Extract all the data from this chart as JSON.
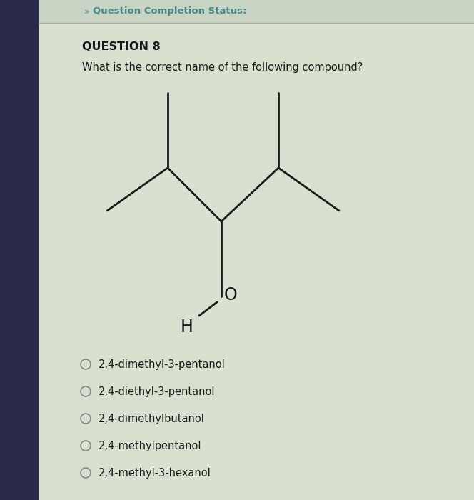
{
  "header_text": "Question Completion Status:",
  "question_num": "QUESTION 8",
  "question_text": "What is the correct name of the following compound?",
  "choices": [
    "2,4-dimethyl-3-pentanol",
    "2,4-diethyl-3-pentanol",
    "2,4-dimethylbutanol",
    "2,4-methylpentanol",
    "2,4-methyl-3-hexanol"
  ],
  "sidebar_color": "#2a2a4a",
  "bg_color": "#d8e0d0",
  "content_bg": "#dde6dd",
  "header_bar_color": "#c8d4c4",
  "header_text_color": "#4a8888",
  "line_color": "#1a1a1a",
  "text_color": "#1a1a1a",
  "separator_color": "#aaaaaa",
  "radio_color": "#888888"
}
